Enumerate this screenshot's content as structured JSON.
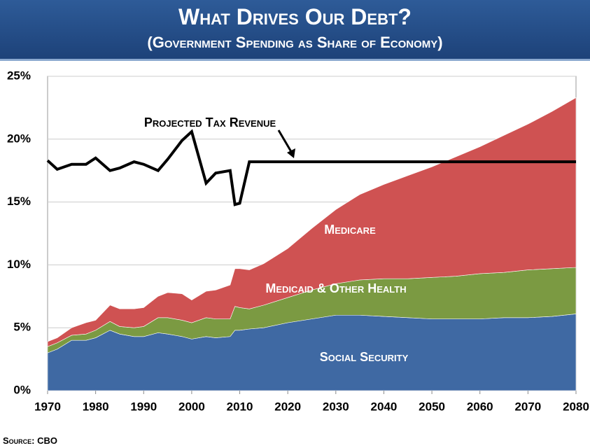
{
  "chart_data": {
    "type": "stacked-area-line",
    "title": "What Drives Our Debt?",
    "subtitle": "(Government Spending as Share of Economy)",
    "source": "Source: CBO",
    "x": [
      1970,
      1972,
      1975,
      1978,
      1980,
      1983,
      1985,
      1988,
      1990,
      1993,
      1995,
      1998,
      2000,
      2003,
      2005,
      2008,
      2009,
      2010,
      2012,
      2015,
      2020,
      2025,
      2030,
      2035,
      2040,
      2045,
      2050,
      2055,
      2060,
      2065,
      2070,
      2075,
      2080
    ],
    "series": [
      {
        "name": "Social Security",
        "color": "#3f69a3",
        "values": [
          3.0,
          3.3,
          4.0,
          4.0,
          4.2,
          4.8,
          4.5,
          4.3,
          4.3,
          4.6,
          4.5,
          4.3,
          4.1,
          4.3,
          4.2,
          4.3,
          4.8,
          4.8,
          4.9,
          5.0,
          5.4,
          5.7,
          6.0,
          6.0,
          5.9,
          5.8,
          5.7,
          5.7,
          5.7,
          5.8,
          5.8,
          5.9,
          6.1
        ]
      },
      {
        "name": "Medicaid & Other Health",
        "color": "#7b9a42",
        "values": [
          0.5,
          0.5,
          0.4,
          0.5,
          0.6,
          0.7,
          0.6,
          0.7,
          0.8,
          1.2,
          1.3,
          1.3,
          1.3,
          1.5,
          1.5,
          1.4,
          1.9,
          1.8,
          1.6,
          1.8,
          2.0,
          2.3,
          2.5,
          2.8,
          3.0,
          3.1,
          3.3,
          3.4,
          3.6,
          3.6,
          3.8,
          3.8,
          3.7
        ]
      },
      {
        "name": "Medicare",
        "color": "#cf5252",
        "values": [
          0.4,
          0.4,
          0.6,
          0.9,
          0.8,
          1.3,
          1.4,
          1.5,
          1.5,
          1.7,
          2.0,
          2.1,
          1.8,
          2.1,
          2.3,
          2.7,
          3.0,
          3.1,
          3.1,
          3.3,
          3.9,
          4.9,
          5.9,
          6.8,
          7.5,
          8.2,
          8.8,
          9.5,
          10.1,
          10.9,
          11.6,
          12.5,
          13.5
        ]
      },
      {
        "name": "Projected Tax Revenue",
        "color": "#000000",
        "type": "line",
        "values": [
          18.3,
          17.6,
          18.0,
          18.0,
          18.5,
          17.5,
          17.7,
          18.2,
          18.0,
          17.5,
          18.4,
          19.9,
          20.6,
          16.5,
          17.3,
          17.5,
          14.8,
          14.9,
          18.2,
          18.2,
          18.2,
          18.2,
          18.2,
          18.2,
          18.2,
          18.2,
          18.2,
          18.2,
          18.2,
          18.2,
          18.2,
          18.2,
          18.2
        ]
      }
    ],
    "xlim": [
      1970,
      2080
    ],
    "xticks": [
      1970,
      1980,
      1990,
      2000,
      2010,
      2020,
      2030,
      2040,
      2050,
      2060,
      2070,
      2080
    ],
    "ylim": [
      0,
      25
    ],
    "yticks": [
      {
        "value": 0,
        "label": "0%"
      },
      {
        "value": 5,
        "label": "5%"
      },
      {
        "value": 10,
        "label": "10%"
      },
      {
        "value": 15,
        "label": "15%"
      },
      {
        "value": 20,
        "label": "20%"
      },
      {
        "value": 25,
        "label": "25%"
      }
    ],
    "grid": true
  }
}
